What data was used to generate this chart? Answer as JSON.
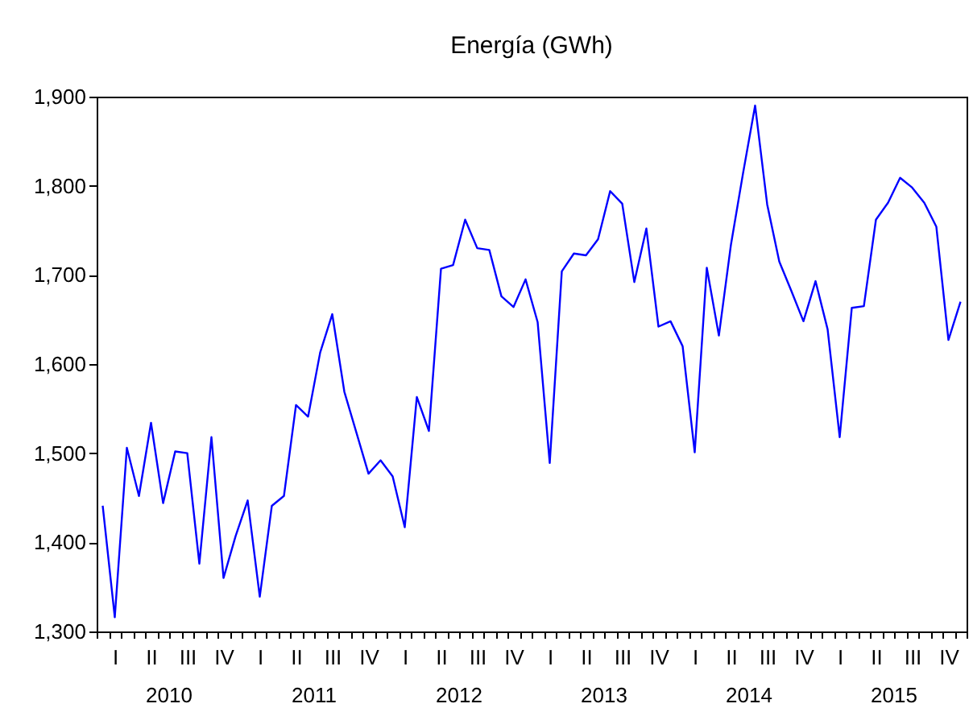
{
  "chart_data": {
    "type": "line",
    "title": "Energía (GWh)",
    "categories": [
      null,
      "I",
      null,
      null,
      "II",
      null,
      null,
      "III",
      null,
      null,
      "IV",
      null,
      null,
      "I",
      null,
      null,
      "II",
      null,
      null,
      "III",
      null,
      null,
      "IV",
      null,
      null,
      "I",
      null,
      null,
      "II",
      null,
      null,
      "III",
      null,
      null,
      "IV",
      null,
      null,
      "I",
      null,
      null,
      "II",
      null,
      null,
      "III",
      null,
      null,
      "IV",
      null,
      null,
      "I",
      null,
      null,
      "II",
      null,
      null,
      "III",
      null,
      null,
      "IV",
      null,
      null,
      "I",
      null,
      null,
      "II",
      null,
      null,
      "III",
      null,
      null,
      "IV",
      null
    ],
    "series": [
      {
        "color": "#0000ff",
        "values": [
          1441,
          1316,
          1506,
          1452,
          1534,
          1444,
          1502,
          1500,
          1376,
          1518,
          1360,
          1407,
          1447,
          1339,
          1441,
          1452,
          1554,
          1541,
          1613,
          1656,
          1569,
          1523,
          1477,
          1492,
          1474,
          1417,
          1563,
          1525,
          1707,
          1711,
          1762,
          1730,
          1728,
          1676,
          1664,
          1695,
          1647,
          1489,
          1704,
          1724,
          1722,
          1740,
          1794,
          1780,
          1692,
          1752,
          1642,
          1648,
          1620,
          1501,
          1708,
          1632,
          1734,
          1814,
          1890,
          1779,
          1715,
          1682,
          1648,
          1693,
          1639,
          1518,
          1663,
          1665,
          1762,
          1781,
          1809,
          1798,
          1781,
          1754,
          1627,
          1670
        ]
      }
    ],
    "annotations": [
      "2010",
      "2011",
      "2012",
      "2013",
      "2014",
      "2015"
    ],
    "ylim": [
      1300,
      1900
    ],
    "yticks": [
      {
        "value": 1300,
        "label": "1,300"
      },
      {
        "value": 1400,
        "label": "1,400"
      },
      {
        "value": 1500,
        "label": "1,500"
      },
      {
        "value": 1600,
        "label": "1,600"
      },
      {
        "value": 1700,
        "label": "1,700"
      },
      {
        "value": 1800,
        "label": "1,800"
      },
      {
        "value": 1900,
        "label": "1,900"
      }
    ],
    "grid": false,
    "legend": false,
    "marker": "none",
    "line_style": "solid"
  }
}
